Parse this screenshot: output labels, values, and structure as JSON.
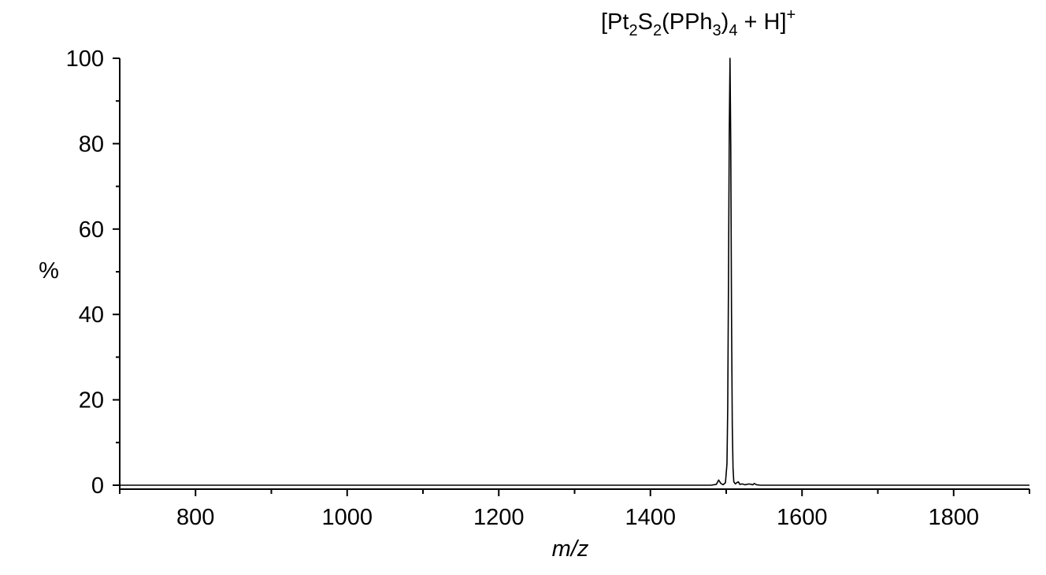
{
  "chart_data": {
    "type": "line",
    "annotation": {
      "parts": [
        {
          "text": "[Pt",
          "shift": "base"
        },
        {
          "text": "2",
          "shift": "sub"
        },
        {
          "text": "S",
          "shift": "base"
        },
        {
          "text": "2",
          "shift": "sub"
        },
        {
          "text": "(PPh",
          "shift": "base"
        },
        {
          "text": "3",
          "shift": "sub"
        },
        {
          "text": ")",
          "shift": "base"
        },
        {
          "text": "4",
          "shift": "sub"
        },
        {
          "text": " + H]",
          "shift": "base"
        },
        {
          "text": "+",
          "shift": "super"
        }
      ]
    },
    "xlabel": "m/z",
    "ylabel": "%",
    "xlim": [
      700,
      1900
    ],
    "ylim": [
      0,
      100
    ],
    "xticks": [
      800,
      1000,
      1200,
      1400,
      1600,
      1800
    ],
    "xtick_labels": [
      "800",
      "1000",
      "1200",
      "1400",
      "1600",
      "1800"
    ],
    "xminor": [
      700,
      900,
      1100,
      1300,
      1500,
      1700,
      1900
    ],
    "yticks": [
      0,
      20,
      40,
      60,
      80,
      100
    ],
    "ytick_labels": [
      "0",
      "20",
      "40",
      "60",
      "80",
      "100"
    ],
    "yminor": [
      10,
      30,
      50,
      70,
      90
    ],
    "grid": false,
    "series": [
      {
        "color": "#000000",
        "x": [
          700,
          1400,
          1480,
          1487,
          1490,
          1493,
          1496,
          1499,
          1501,
          1502,
          1503,
          1504,
          1505,
          1506,
          1507,
          1508,
          1509,
          1510,
          1512,
          1514,
          1516,
          1518,
          1521,
          1525,
          1530,
          1535,
          1537,
          1540,
          1545,
          1600,
          1900
        ],
        "y": [
          0,
          0,
          0,
          0.2,
          1.2,
          0.4,
          0.1,
          0.6,
          5,
          18,
          48,
          82,
          100,
          80,
          40,
          14,
          4,
          0.8,
          0.3,
          0.6,
          0.8,
          0.2,
          0.3,
          0.1,
          0.3,
          0.1,
          0.4,
          0.1,
          0,
          0,
          0
        ]
      }
    ]
  }
}
